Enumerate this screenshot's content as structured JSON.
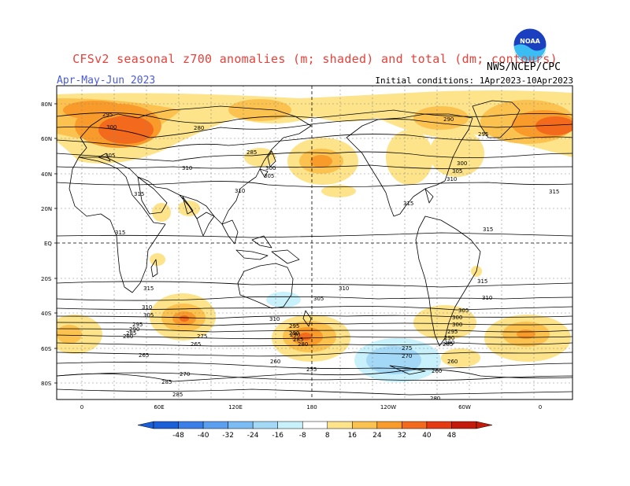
{
  "header": {
    "title": "CFSv2 seasonal z700 anomalies (m; shaded) and total (dm; contours)",
    "period": "Apr-May-Jun 2023",
    "initial_conditions": "Initial conditions: 1Apr2023-10Apr2023",
    "agency": "NWS/NCEP/CPC",
    "logo_text": "NOAA"
  },
  "map": {
    "lat_labels": [
      "80N",
      "60N",
      "40N",
      "20N",
      "EQ",
      "20S",
      "40S",
      "60S",
      "80S"
    ],
    "lon_labels": [
      "0",
      "60E",
      "120E",
      "180",
      "120W",
      "60W",
      "0"
    ]
  },
  "contour_labels": [
    "295",
    "300",
    "305",
    "280",
    "310",
    "315",
    "285",
    "300",
    "305",
    "310",
    "290",
    "295",
    "300",
    "305",
    "310",
    "315",
    "315",
    "315",
    "315",
    "315",
    "310",
    "315",
    "305",
    "310",
    "310",
    "305",
    "295",
    "290",
    "280",
    "285",
    "290",
    "275",
    "270",
    "265",
    "260",
    "255",
    "285",
    "280",
    "285",
    "290",
    "295",
    "300",
    "305",
    "310",
    "300",
    "295",
    "290",
    "285",
    "280",
    "275",
    "270",
    "265",
    "260",
    "280",
    "285",
    "260"
  ],
  "colorbar": {
    "ticks": [
      "-48",
      "-40",
      "-32",
      "-24",
      "-16",
      "-8",
      "8",
      "16",
      "24",
      "32",
      "40",
      "48"
    ],
    "colors": [
      "#1a5fd8",
      "#3a7fe8",
      "#5a9ff0",
      "#7cbcf4",
      "#a3d8f7",
      "#c8f1fb",
      "#ffffff",
      "#fde38a",
      "#fcc24f",
      "#f99b2b",
      "#f36a1c",
      "#e53a12",
      "#c41a0c"
    ]
  }
}
